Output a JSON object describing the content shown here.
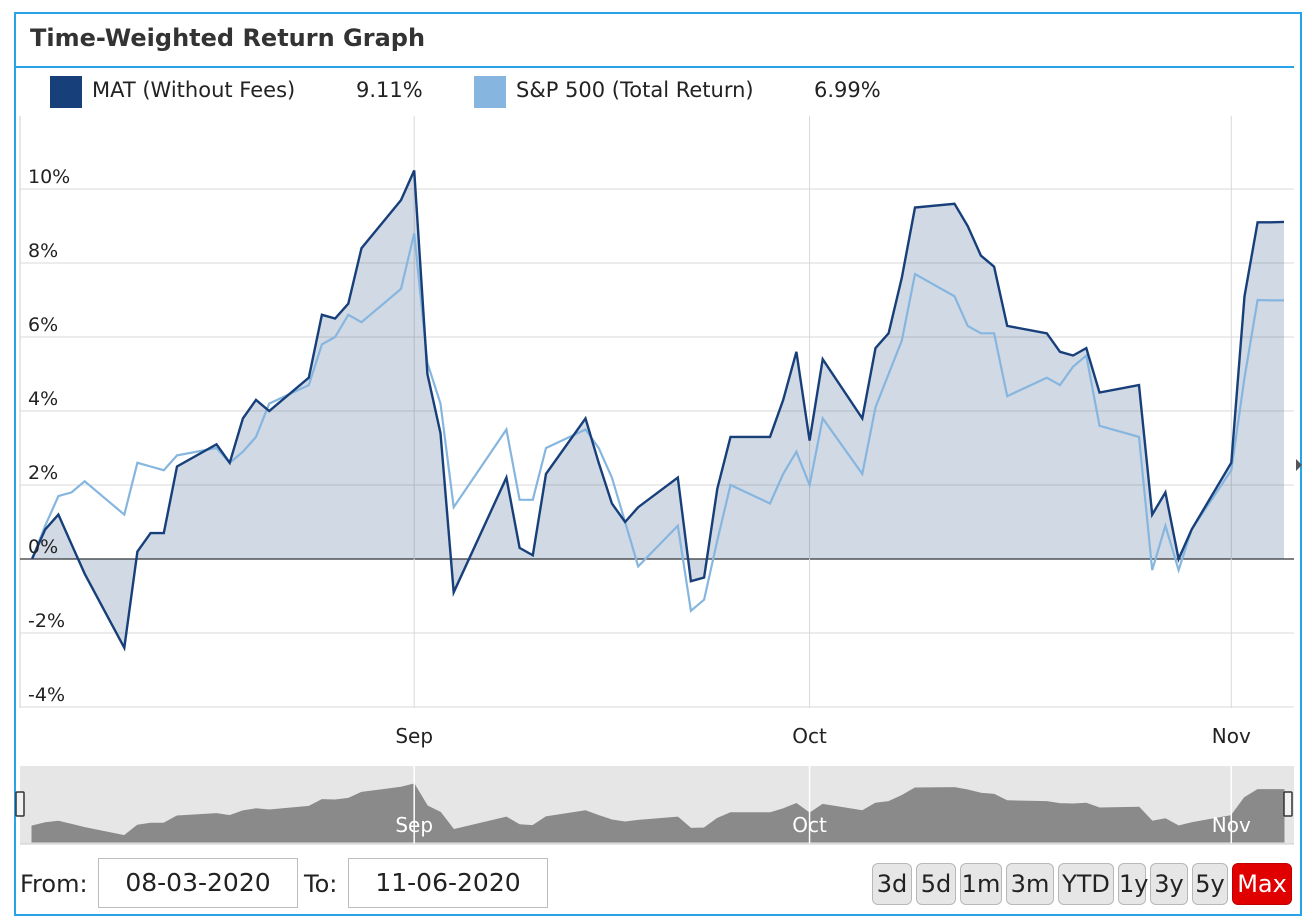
{
  "title": "Time-Weighted Return Graph",
  "legend": [
    {
      "label": "MAT (Without Fees)",
      "value": "9.11%",
      "color": "#173f7a"
    },
    {
      "label": "S&P 500 (Total Return)",
      "value": "6.99%",
      "color": "#86b6df"
    }
  ],
  "range": {
    "from_label": "From:",
    "from_value": "08-03-2020",
    "to_label": "To:",
    "to_value": "11-06-2020",
    "buttons": [
      "3d",
      "5d",
      "1m",
      "3m",
      "YTD",
      "1y",
      "3y",
      "5y",
      "Max"
    ],
    "active": "Max"
  },
  "chart_data": {
    "type": "area",
    "title": "Time-Weighted Return Graph",
    "xlabel": "",
    "ylabel": "",
    "ylim": [
      -4,
      12
    ],
    "yticks": [
      "-4%",
      "-2%",
      "0%",
      "2%",
      "4%",
      "6%",
      "8%",
      "10%"
    ],
    "xticks": [
      {
        "label": "Sep",
        "date": "2020-09-01"
      },
      {
        "label": "Oct",
        "date": "2020-10-01"
      },
      {
        "label": "Nov",
        "date": "2020-11-02"
      }
    ],
    "navigator_labels": [
      "Sep",
      "Oct",
      "Nov"
    ],
    "grid": true,
    "legend_position": "top",
    "x": [
      "2020-08-03",
      "2020-08-04",
      "2020-08-05",
      "2020-08-06",
      "2020-08-07",
      "2020-08-10",
      "2020-08-11",
      "2020-08-12",
      "2020-08-13",
      "2020-08-14",
      "2020-08-17",
      "2020-08-18",
      "2020-08-19",
      "2020-08-20",
      "2020-08-21",
      "2020-08-24",
      "2020-08-25",
      "2020-08-26",
      "2020-08-27",
      "2020-08-28",
      "2020-08-31",
      "2020-09-01",
      "2020-09-02",
      "2020-09-03",
      "2020-09-04",
      "2020-09-08",
      "2020-09-09",
      "2020-09-10",
      "2020-09-11",
      "2020-09-14",
      "2020-09-15",
      "2020-09-16",
      "2020-09-17",
      "2020-09-18",
      "2020-09-21",
      "2020-09-22",
      "2020-09-23",
      "2020-09-24",
      "2020-09-25",
      "2020-09-28",
      "2020-09-29",
      "2020-09-30",
      "2020-10-01",
      "2020-10-02",
      "2020-10-05",
      "2020-10-06",
      "2020-10-07",
      "2020-10-08",
      "2020-10-09",
      "2020-10-12",
      "2020-10-13",
      "2020-10-14",
      "2020-10-15",
      "2020-10-16",
      "2020-10-19",
      "2020-10-20",
      "2020-10-21",
      "2020-10-22",
      "2020-10-23",
      "2020-10-26",
      "2020-10-27",
      "2020-10-28",
      "2020-10-29",
      "2020-10-30",
      "2020-11-02",
      "2020-11-03",
      "2020-11-04",
      "2020-11-05",
      "2020-11-06"
    ],
    "series": [
      {
        "name": "MAT (Without Fees)",
        "color": "#173f7a",
        "values": [
          0,
          0.8,
          1.2,
          0.4,
          -0.4,
          -2.4,
          0.2,
          0.7,
          0.7,
          2.5,
          3.1,
          2.6,
          3.8,
          4.3,
          4.0,
          4.9,
          6.6,
          6.5,
          6.9,
          8.4,
          9.7,
          10.5,
          5.0,
          3.4,
          -0.9,
          2.2,
          0.3,
          0.1,
          2.3,
          3.8,
          2.6,
          1.5,
          1.0,
          1.4,
          2.2,
          -0.6,
          -0.5,
          1.9,
          3.3,
          3.3,
          4.3,
          5.6,
          3.2,
          5.4,
          3.8,
          5.7,
          6.1,
          7.6,
          9.5,
          9.6,
          9.0,
          8.2,
          7.9,
          6.3,
          6.1,
          5.6,
          5.5,
          5.7,
          4.5,
          4.7,
          1.2,
          1.8,
          0.0,
          0.8,
          2.6,
          7.1,
          9.1,
          9.1,
          9.11
        ]
      },
      {
        "name": "S&P 500 (Total Return)",
        "color": "#86b6df",
        "values": [
          0,
          0.9,
          1.7,
          1.8,
          2.1,
          1.2,
          2.6,
          2.5,
          2.4,
          2.8,
          3.0,
          2.6,
          2.9,
          3.3,
          4.2,
          4.7,
          5.8,
          6.0,
          6.6,
          6.4,
          7.3,
          8.8,
          5.3,
          4.2,
          1.4,
          3.5,
          1.6,
          1.6,
          3.0,
          3.5,
          3.0,
          2.2,
          1.0,
          -0.2,
          0.9,
          -1.4,
          -1.1,
          0.5,
          2.0,
          1.5,
          2.3,
          2.9,
          2.0,
          3.8,
          2.3,
          4.1,
          5.0,
          5.9,
          7.7,
          7.1,
          6.3,
          6.1,
          6.1,
          4.4,
          4.9,
          4.7,
          5.2,
          5.5,
          3.6,
          3.3,
          -0.3,
          0.9,
          -0.3,
          0.8,
          2.4,
          4.9,
          7.0,
          6.99,
          6.99
        ]
      }
    ]
  }
}
